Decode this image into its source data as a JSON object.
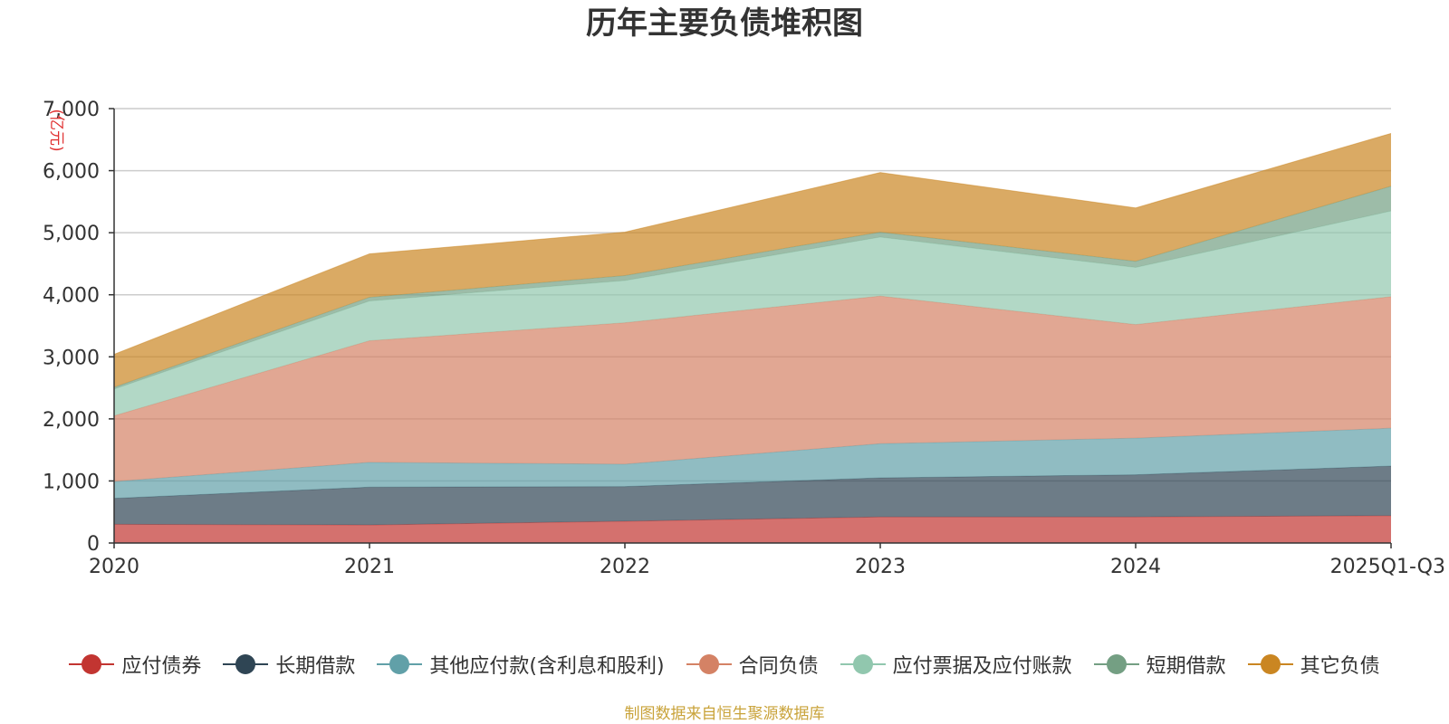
{
  "chart_data": {
    "type": "area",
    "stacked": true,
    "title": "历年主要负债堆积图",
    "ylabel": "(亿元)",
    "xlabel": "",
    "categories": [
      "2020",
      "2021",
      "2022",
      "2023",
      "2024",
      "2025Q1-Q3"
    ],
    "ylim": [
      0,
      7000
    ],
    "yticks": [
      0,
      1000,
      2000,
      3000,
      4000,
      5000,
      6000,
      7000
    ],
    "ytick_labels": [
      "0",
      "1,000",
      "2,000",
      "3,000",
      "4,000",
      "5,000",
      "6,000",
      "7,000"
    ],
    "grid": true,
    "series": [
      {
        "name": "应付债券",
        "color": "#c23531",
        "values": [
          300,
          290,
          350,
          420,
          420,
          440
        ]
      },
      {
        "name": "长期借款",
        "color": "#2f4554",
        "values": [
          420,
          610,
          560,
          630,
          680,
          800
        ]
      },
      {
        "name": "其他应付款(含利息和股利)",
        "color": "#61a0a8",
        "values": [
          270,
          400,
          360,
          550,
          590,
          610
        ]
      },
      {
        "name": "合同负债",
        "color": "#d48265",
        "values": [
          1060,
          1960,
          2280,
          2380,
          1830,
          2120
        ]
      },
      {
        "name": "应付票据及应付账款",
        "color": "#91c7ae",
        "values": [
          430,
          640,
          680,
          950,
          920,
          1380
        ]
      },
      {
        "name": "短期借款",
        "color": "#749f83",
        "values": [
          30,
          60,
          80,
          80,
          100,
          400
        ]
      },
      {
        "name": "其它负债",
        "color": "#ca8622",
        "values": [
          530,
          700,
          700,
          960,
          860,
          850
        ]
      }
    ],
    "legend_position": "bottom"
  },
  "source_note": "制图数据来自恒生聚源数据库"
}
